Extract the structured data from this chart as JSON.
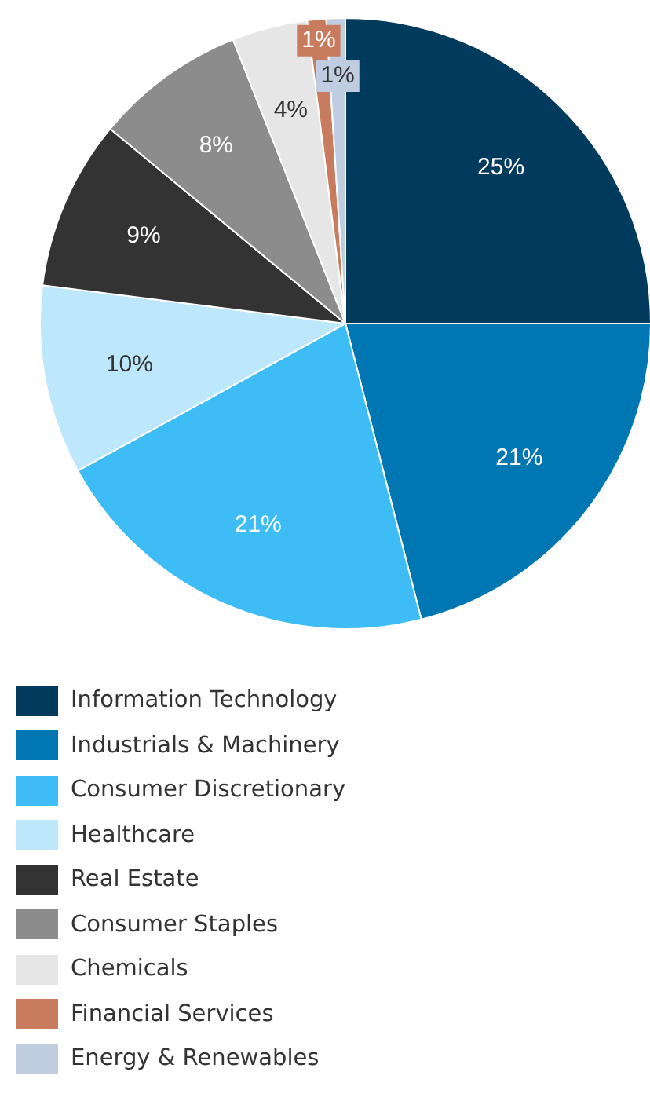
{
  "chart_data": {
    "type": "pie",
    "categories": [
      "Information Technology",
      "Industrials & Machinery",
      "Consumer Discretionary",
      "Healthcare",
      "Real Estate",
      "Consumer Staples",
      "Chemicals",
      "Financial Services",
      "Energy & Renewables"
    ],
    "values": [
      25,
      21,
      21,
      10,
      9,
      8,
      4,
      1,
      1
    ],
    "colors": [
      "#003a5c",
      "#0077b3",
      "#3dbcf5",
      "#bde8fc",
      "#333333",
      "#8c8c8c",
      "#e6e6e6",
      "#c97c5d",
      "#c0cce0"
    ],
    "value_labels": [
      "25%",
      "21%",
      "21%",
      "10%",
      "9%",
      "8%",
      "4%",
      "1%",
      "1%"
    ],
    "legend": "bottom"
  }
}
